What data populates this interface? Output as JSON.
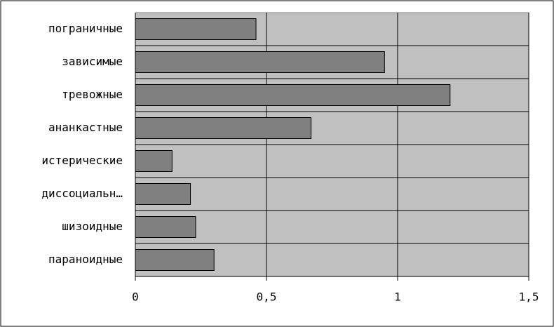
{
  "chart_data": {
    "type": "bar",
    "orientation": "horizontal",
    "categories": [
      "пограничные",
      "зависимые",
      "тревожные",
      "ананкастные",
      "истерические",
      "диссоциальн…",
      "шизоидные",
      "параноидные"
    ],
    "values": [
      0.46,
      0.95,
      1.2,
      0.67,
      0.14,
      0.21,
      0.23,
      0.3
    ],
    "color": "#808080",
    "xlim": [
      0,
      1.5
    ],
    "xticks": [
      0,
      {
        "value": 0.5,
        "label": "0,5"
      },
      1,
      {
        "value": 1.5,
        "label": "1,5"
      }
    ],
    "grid": true
  }
}
